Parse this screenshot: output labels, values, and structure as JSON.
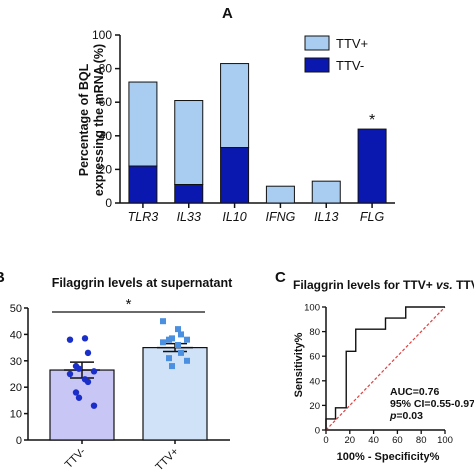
{
  "colors": {
    "ttv_plus": "#a9cdf0",
    "ttv_minus": "#0a18b0",
    "roc_line": "#111111",
    "diag_line": "#e04040",
    "dot_minus": "#1a2fc9",
    "dot_plus": "#4a8fe0",
    "bar_minus_fill": "#c8c6f5",
    "bar_plus_fill": "#cfe2f8"
  },
  "chart_data": [
    {
      "panel": "A",
      "type": "bar",
      "stacked": true,
      "ylabel_lines": [
        "Percentage of BQL",
        "expressing the mRNA (%)"
      ],
      "ylim": [
        0,
        100
      ],
      "yticks": [
        0,
        20,
        40,
        60,
        80,
        100
      ],
      "categories": [
        "TLR3",
        "IL33",
        "IL10",
        "IFNG",
        "IL13",
        "FLG"
      ],
      "series": [
        {
          "name": "TTV-",
          "values": [
            22,
            11,
            33,
            0,
            0,
            44
          ]
        },
        {
          "name": "TTV+",
          "values": [
            50,
            50,
            50,
            10,
            13,
            0
          ]
        }
      ],
      "totals": [
        72,
        61,
        83,
        10,
        13,
        44
      ],
      "annotations": [
        {
          "category": "FLG",
          "text": "*"
        }
      ],
      "legend": [
        "TTV+",
        "TTV-"
      ],
      "legend_position": "top-right"
    },
    {
      "panel": "B",
      "type": "bar",
      "title": "Filaggrin levels at supernatant",
      "ylim": [
        0,
        50
      ],
      "yticks": [
        0,
        10,
        20,
        30,
        40,
        50
      ],
      "categories": [
        "TTV-",
        "TTV+"
      ],
      "means": [
        26.5,
        35
      ],
      "sem": [
        3,
        1.5
      ],
      "points": {
        "TTV-": [
          38,
          38.5,
          33,
          28,
          27,
          26,
          25,
          23,
          22,
          18,
          16,
          13
        ],
        "TTV+": [
          45,
          42,
          40,
          38,
          38.5,
          38,
          37,
          36,
          33,
          31,
          28,
          30
        ]
      },
      "significance": "*"
    },
    {
      "panel": "C",
      "type": "line",
      "title_parts": [
        "Filaggrin levels for TTV+ ",
        "vs.",
        " TTV-"
      ],
      "xlabel": "100% - Specificity%",
      "ylabel": "Sensitivity%",
      "xlim": [
        0,
        100
      ],
      "ylim": [
        0,
        100
      ],
      "ticks": [
        0,
        20,
        40,
        60,
        80,
        100
      ],
      "roc": {
        "x": [
          0,
          0,
          8,
          8,
          17,
          17,
          25,
          25,
          33,
          33,
          50,
          50,
          67,
          67,
          100
        ],
        "y": [
          0,
          9,
          9,
          18,
          18,
          64,
          64,
          82,
          82,
          82,
          82,
          91,
          91,
          100,
          100
        ]
      },
      "stats": {
        "auc": "AUC=0.76",
        "ci": "95% CI=0.55-0.97",
        "p_label": "p",
        "p_value": "=0.03"
      }
    }
  ],
  "panel_labels": {
    "a": "A",
    "b": "B",
    "c": "C"
  }
}
